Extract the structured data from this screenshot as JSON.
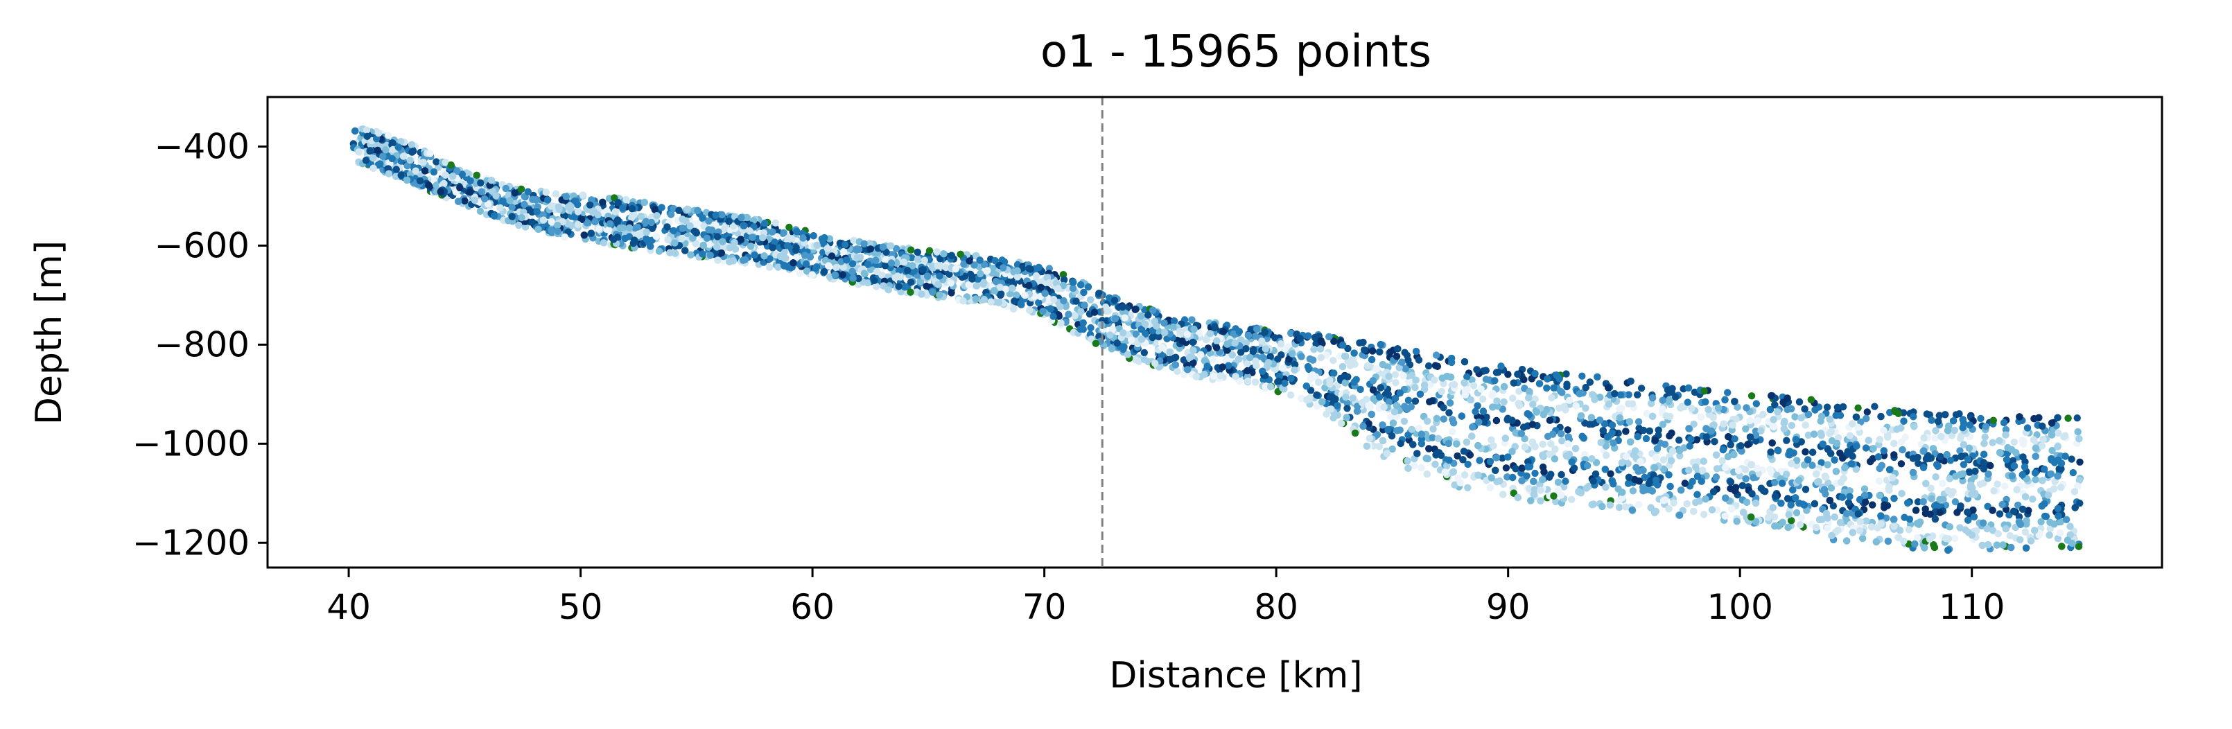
{
  "chart_data": {
    "type": "scatter",
    "title": "o1 - 15965 points",
    "xlabel": "Distance [km]",
    "ylabel": "Depth [m]",
    "xlim": [
      36.5,
      118.2
    ],
    "ylim": [
      -1250,
      -300
    ],
    "xticks": [
      40,
      50,
      60,
      70,
      80,
      90,
      100,
      110
    ],
    "xtick_labels": [
      "40",
      "50",
      "60",
      "70",
      "80",
      "90",
      "100",
      "110"
    ],
    "yticks": [
      -400,
      -600,
      -800,
      -1000,
      -1200
    ],
    "ytick_labels": [
      "−400",
      "−600",
      "−800",
      "−1000",
      "−1200"
    ],
    "grid": false,
    "legend": "none",
    "point_count": 15965,
    "vertical_marker": {
      "x": 72.5,
      "style": "dashed",
      "color": "#808080"
    },
    "colormap": [
      "#08306b",
      "#0b4f8a",
      "#1f78b4",
      "#4a98c9",
      "#7bbcd9",
      "#a6d1e6",
      "#cfe6f1",
      "#eaf4fa"
    ],
    "edge_color": "#1a7a1a",
    "top_boundary": [
      [
        40.2,
        -360
      ],
      [
        41,
        -365
      ],
      [
        43,
        -400
      ],
      [
        45,
        -450
      ],
      [
        47,
        -480
      ],
      [
        49,
        -495
      ],
      [
        51,
        -500
      ],
      [
        53,
        -510
      ],
      [
        55,
        -525
      ],
      [
        57,
        -540
      ],
      [
        59,
        -560
      ],
      [
        60.5,
        -580
      ],
      [
        62,
        -590
      ],
      [
        64,
        -605
      ],
      [
        66,
        -615
      ],
      [
        68,
        -625
      ],
      [
        70,
        -640
      ],
      [
        71.5,
        -670
      ],
      [
        72.5,
        -695
      ],
      [
        74,
        -720
      ],
      [
        76,
        -745
      ],
      [
        78,
        -760
      ],
      [
        80,
        -770
      ],
      [
        82,
        -780
      ],
      [
        84,
        -795
      ],
      [
        86,
        -810
      ],
      [
        88,
        -830
      ],
      [
        90,
        -845
      ],
      [
        92,
        -855
      ],
      [
        94,
        -865
      ],
      [
        96,
        -875
      ],
      [
        98,
        -885
      ],
      [
        100,
        -895
      ],
      [
        102,
        -905
      ],
      [
        104,
        -915
      ],
      [
        106,
        -925
      ],
      [
        108,
        -935
      ],
      [
        110,
        -940
      ],
      [
        112,
        -945
      ],
      [
        114.7,
        -948
      ]
    ],
    "bottom_boundary": [
      [
        40.2,
        -430
      ],
      [
        42,
        -460
      ],
      [
        44,
        -500
      ],
      [
        46,
        -540
      ],
      [
        48,
        -570
      ],
      [
        50,
        -590
      ],
      [
        52,
        -605
      ],
      [
        54,
        -620
      ],
      [
        56,
        -630
      ],
      [
        58,
        -645
      ],
      [
        60,
        -660
      ],
      [
        62,
        -680
      ],
      [
        64,
        -695
      ],
      [
        66,
        -710
      ],
      [
        68,
        -720
      ],
      [
        70,
        -745
      ],
      [
        72.5,
        -810
      ],
      [
        75,
        -850
      ],
      [
        77,
        -870
      ],
      [
        79,
        -880
      ],
      [
        81,
        -910
      ],
      [
        82.5,
        -950
      ],
      [
        84,
        -1010
      ],
      [
        86,
        -1060
      ],
      [
        88,
        -1090
      ],
      [
        90,
        -1110
      ],
      [
        92,
        -1120
      ],
      [
        94,
        -1130
      ],
      [
        96,
        -1140
      ],
      [
        98,
        -1150
      ],
      [
        100,
        -1160
      ],
      [
        102,
        -1170
      ],
      [
        104,
        -1195
      ],
      [
        106,
        -1205
      ],
      [
        108,
        -1215
      ],
      [
        110,
        -1218
      ],
      [
        112,
        -1215
      ],
      [
        114.7,
        -1210
      ]
    ]
  }
}
